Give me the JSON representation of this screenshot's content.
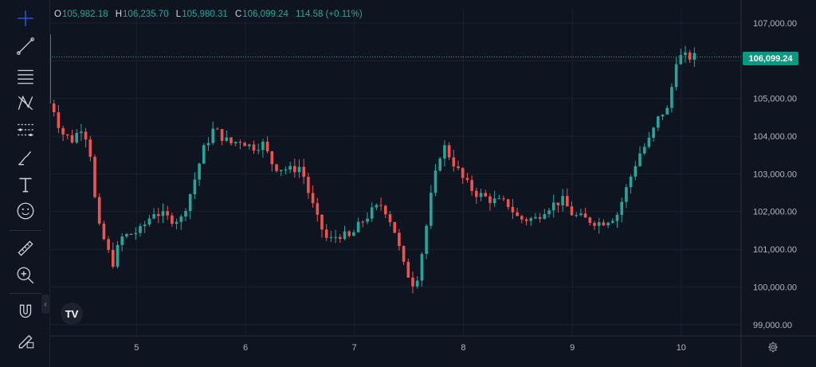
{
  "ohlc": {
    "open_label": "O",
    "open": "105,982.18",
    "high_label": "H",
    "high": "106,235.70",
    "low_label": "L",
    "low": "105,980.31",
    "close_label": "C",
    "close": "106,099.24",
    "change": "114.58 (+0.11%)"
  },
  "last_price": "106,099.24",
  "logo_text": "TV",
  "colors": {
    "up": "#26a69a",
    "down": "#ef5350",
    "background": "#0f1421",
    "grid": "#1a2030",
    "text": "#b2b5be"
  },
  "toolbar": {
    "tools": [
      "crosshair-icon",
      "trendline-icon",
      "fib-retracement-icon",
      "pattern-icon",
      "projection-icon",
      "brush-icon",
      "text-icon",
      "emoji-icon",
      "ruler-icon",
      "zoom-in-icon",
      "magnet-icon",
      "lock-drawings-icon"
    ]
  },
  "chart_data": {
    "type": "candlestick",
    "x_ticks": [
      "5",
      "6",
      "7",
      "8",
      "9",
      "10"
    ],
    "y_ticks": [
      "107,000.00",
      "106,000.00",
      "105,000.00",
      "104,000.00",
      "103,000.00",
      "102,000.00",
      "101,000.00",
      "100,000.00",
      "99,000.00"
    ],
    "ylim": [
      98700,
      107400
    ],
    "current_price": 106099.24,
    "price_anchors": [
      [
        4.2,
        104200
      ],
      [
        4.25,
        105000
      ],
      [
        4.35,
        104100
      ],
      [
        4.45,
        103900
      ],
      [
        4.55,
        104300
      ],
      [
        4.62,
        103500
      ],
      [
        4.68,
        101700
      ],
      [
        4.75,
        101200
      ],
      [
        4.82,
        100600
      ],
      [
        4.9,
        101300
      ],
      [
        4.98,
        101400
      ],
      [
        5.08,
        101500
      ],
      [
        5.2,
        102000
      ],
      [
        5.35,
        101800
      ],
      [
        5.45,
        101800
      ],
      [
        5.55,
        102600
      ],
      [
        5.65,
        103600
      ],
      [
        5.75,
        104200
      ],
      [
        5.82,
        104000
      ],
      [
        5.9,
        103800
      ],
      [
        6.0,
        103900
      ],
      [
        6.1,
        103700
      ],
      [
        6.2,
        103800
      ],
      [
        6.3,
        103200
      ],
      [
        6.45,
        103100
      ],
      [
        6.55,
        103200
      ],
      [
        6.62,
        102500
      ],
      [
        6.7,
        101800
      ],
      [
        6.8,
        101200
      ],
      [
        6.9,
        101400
      ],
      [
        7.0,
        101300
      ],
      [
        7.1,
        101700
      ],
      [
        7.2,
        102000
      ],
      [
        7.3,
        102200
      ],
      [
        7.4,
        101600
      ],
      [
        7.5,
        100500
      ],
      [
        7.6,
        100000
      ],
      [
        7.68,
        101200
      ],
      [
        7.75,
        102500
      ],
      [
        7.85,
        103800
      ],
      [
        7.95,
        103300
      ],
      [
        8.05,
        102800
      ],
      [
        8.15,
        102500
      ],
      [
        8.3,
        102300
      ],
      [
        8.45,
        102200
      ],
      [
        8.55,
        101800
      ],
      [
        8.7,
        101800
      ],
      [
        8.8,
        102100
      ],
      [
        8.95,
        102300
      ],
      [
        9.05,
        101900
      ],
      [
        9.15,
        101800
      ],
      [
        9.3,
        101700
      ],
      [
        9.45,
        101900
      ],
      [
        9.55,
        102700
      ],
      [
        9.65,
        103500
      ],
      [
        9.75,
        103900
      ],
      [
        9.85,
        104600
      ],
      [
        9.92,
        104700
      ],
      [
        10.0,
        106099
      ]
    ]
  }
}
